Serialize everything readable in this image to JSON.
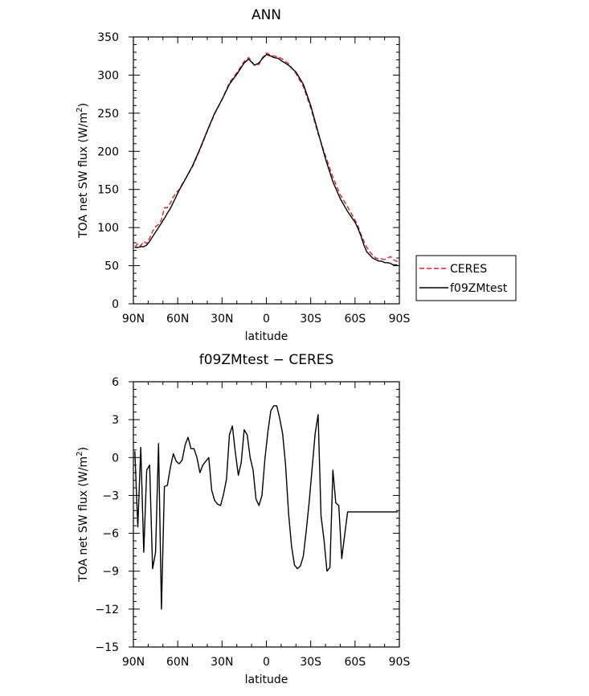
{
  "chart_data": [
    {
      "type": "line",
      "title": "ANN",
      "xlabel": "latitude",
      "ylabel_prefix": "TOA net SW flux (W/m",
      "ylabel_sup": "2",
      "ylabel_suffix": ")",
      "xlim": [
        90,
        -90
      ],
      "ylim": [
        0,
        350
      ],
      "x_ticks": [
        {
          "value": 90,
          "label": "90N"
        },
        {
          "value": 60,
          "label": "60N"
        },
        {
          "value": 30,
          "label": "30N"
        },
        {
          "value": 0,
          "label": "0"
        },
        {
          "value": -30,
          "label": "30S"
        },
        {
          "value": -60,
          "label": "60S"
        },
        {
          "value": -90,
          "label": "90S"
        }
      ],
      "y_ticks": [
        {
          "value": 0,
          "label": "0"
        },
        {
          "value": 50,
          "label": "50"
        },
        {
          "value": 100,
          "label": "100"
        },
        {
          "value": 150,
          "label": "150"
        },
        {
          "value": 200,
          "label": "200"
        },
        {
          "value": 250,
          "label": "250"
        },
        {
          "value": 300,
          "label": "300"
        },
        {
          "value": 350,
          "label": "350"
        }
      ],
      "legend_position": "right",
      "series": [
        {
          "name": "CERES",
          "color": "#e0202a",
          "dash": "dashed",
          "x": [
            89,
            87,
            85,
            83,
            81,
            79,
            77,
            75,
            73,
            71,
            69,
            67,
            65,
            63,
            61,
            59,
            57,
            55,
            50,
            45,
            40,
            35,
            30,
            25,
            20,
            15,
            12,
            10,
            8,
            5,
            3,
            0,
            -3,
            -5,
            -8,
            -10,
            -15,
            -20,
            -25,
            -30,
            -35,
            -40,
            -45,
            -50,
            -55,
            -60,
            -62,
            -64,
            -66,
            -68,
            -70,
            -72,
            -74,
            -76,
            -78,
            -80,
            -82,
            -84,
            -86,
            -88,
            -89
          ],
          "y": [
            74,
            79,
            76,
            82,
            79,
            86,
            95,
            101,
            104,
            110,
            126,
            126,
            132,
            140,
            146,
            150,
            157,
            163,
            180,
            202,
            226,
            249,
            268,
            290,
            303,
            318,
            323,
            318,
            313,
            314,
            322,
            329,
            326,
            325,
            324,
            322,
            315,
            302,
            285,
            257,
            223,
            194,
            166,
            143,
            127,
            110,
            102,
            91,
            82,
            74,
            68,
            64,
            60,
            59,
            59,
            58,
            60,
            62,
            58,
            56,
            55
          ]
        },
        {
          "name": "f09ZMtest",
          "color": "#000000",
          "dash": "solid",
          "x": [
            89,
            87,
            85,
            83,
            81,
            79,
            77,
            75,
            73,
            71,
            69,
            67,
            65,
            63,
            61,
            59,
            57,
            55,
            50,
            45,
            40,
            35,
            30,
            25,
            20,
            15,
            12,
            10,
            8,
            5,
            3,
            0,
            -3,
            -5,
            -8,
            -10,
            -15,
            -20,
            -25,
            -30,
            -35,
            -40,
            -45,
            -50,
            -55,
            -60,
            -62,
            -64,
            -66,
            -68,
            -70,
            -72,
            -74,
            -76,
            -78,
            -80,
            -82,
            -84,
            -86,
            -88,
            -89
          ],
          "y": [
            74,
            74,
            75,
            75,
            77,
            82,
            88,
            94,
            100,
            106,
            112,
            119,
            125,
            133,
            141,
            149,
            156,
            163,
            181,
            203,
            227,
            250,
            268,
            288,
            301,
            316,
            321,
            317,
            313,
            316,
            321,
            327,
            325,
            323,
            322,
            319,
            313,
            304,
            288,
            260,
            225,
            190,
            160,
            138,
            121,
            107,
            99,
            89,
            77,
            68,
            64,
            60,
            58,
            56,
            56,
            54,
            54,
            53,
            51,
            51,
            50
          ]
        }
      ]
    },
    {
      "type": "line",
      "title": "f09ZMtest − CERES",
      "xlabel": "latitude",
      "ylabel_prefix": "TOA net SW flux (W/m",
      "ylabel_sup": "2",
      "ylabel_suffix": ")",
      "xlim": [
        90,
        -90
      ],
      "ylim": [
        -15,
        6
      ],
      "x_ticks": [
        {
          "value": 90,
          "label": "90N"
        },
        {
          "value": 60,
          "label": "60N"
        },
        {
          "value": 30,
          "label": "30N"
        },
        {
          "value": 0,
          "label": "0"
        },
        {
          "value": -30,
          "label": "30S"
        },
        {
          "value": -60,
          "label": "60S"
        },
        {
          "value": -90,
          "label": "90S"
        }
      ],
      "y_ticks": [
        {
          "value": -15,
          "label": "−15"
        },
        {
          "value": -12,
          "label": "−12"
        },
        {
          "value": -9,
          "label": "−9"
        },
        {
          "value": -6,
          "label": "−6"
        },
        {
          "value": -3,
          "label": "−3"
        },
        {
          "value": 0,
          "label": "0"
        },
        {
          "value": 3,
          "label": "3"
        },
        {
          "value": 6,
          "label": "6"
        }
      ],
      "series": [
        {
          "name": "",
          "color": "#000000",
          "dash": "solid",
          "x": [
            89,
            87,
            85,
            83,
            81,
            79,
            77,
            75,
            73,
            71,
            69,
            67,
            65,
            63,
            61,
            59,
            57,
            55,
            53,
            51,
            49,
            47,
            45,
            43,
            41,
            39,
            37,
            35,
            33,
            31,
            29,
            27,
            25,
            23,
            21,
            19,
            17,
            15,
            13,
            11,
            9,
            7,
            5,
            3,
            1,
            -1,
            -3,
            -5,
            -7,
            -9,
            -11,
            -13,
            -15,
            -17,
            -19,
            -21,
            -23,
            -25,
            -27,
            -29,
            -31,
            -33,
            -35,
            -37,
            -39,
            -41,
            -43,
            -45,
            -47,
            -49,
            -51,
            -53,
            -55,
            -57,
            -59,
            -61,
            -63,
            -65,
            -67,
            -69,
            -71,
            -73,
            -75,
            -77,
            -79,
            -81,
            -83,
            -85,
            -87,
            -89
          ],
          "y": [
            0.5,
            -5.5,
            0.8,
            -7.5,
            -1.0,
            -0.6,
            -8.8,
            -7.5,
            1.1,
            -12.0,
            -2.3,
            -2.2,
            -0.8,
            0.3,
            -0.3,
            -0.5,
            -0.2,
            1.0,
            1.6,
            0.7,
            0.7,
            0.0,
            -1.2,
            -0.6,
            -0.3,
            0.0,
            -2.6,
            -3.4,
            -3.7,
            -3.8,
            -2.9,
            -1.7,
            1.8,
            2.5,
            0.4,
            -1.4,
            -0.4,
            2.2,
            1.8,
            0.0,
            -1.0,
            -3.3,
            -3.8,
            -3.0,
            -0.1,
            2.0,
            3.7,
            4.1,
            4.1,
            3.1,
            1.9,
            -0.6,
            -4.4,
            -7.0,
            -8.5,
            -8.8,
            -8.6,
            -7.8,
            -5.8,
            -3.5,
            -0.8,
            1.9,
            3.4,
            -4.6,
            -6.5,
            -9.0,
            -8.7,
            -1.0,
            -3.6,
            -3.8,
            -8.0,
            -6.1,
            -4.3,
            -4.3,
            -4.3,
            -4.3,
            -4.3,
            -4.3,
            -4.3,
            -4.3,
            -4.3,
            -4.3,
            -4.3,
            -4.3,
            -4.3,
            -4.3,
            -4.3,
            -4.3,
            -4.3,
            -4.3
          ]
        }
      ]
    }
  ]
}
